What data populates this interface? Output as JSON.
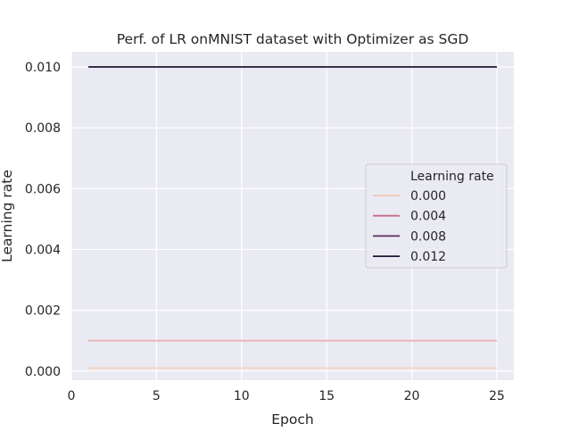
{
  "chart_data": {
    "type": "line",
    "title": "Perf. of LR onMNIST dataset with Optimizer as SGD",
    "xlabel": "Epoch",
    "ylabel": "Learning rate",
    "xlim": [
      0,
      26
    ],
    "ylim": [
      -0.0003,
      0.0105
    ],
    "xticks": [
      0,
      5,
      10,
      15,
      20,
      25
    ],
    "yticks": [
      0.0,
      0.002,
      0.004,
      0.006,
      0.008,
      0.01
    ],
    "xtick_labels": [
      "0",
      "5",
      "10",
      "15",
      "20",
      "25"
    ],
    "ytick_labels": [
      "0.000",
      "0.002",
      "0.004",
      "0.006",
      "0.008",
      "0.010"
    ],
    "grid": true,
    "legend": {
      "title": "Learning rate",
      "placement": "center-right",
      "entries": [
        {
          "label": "0.000",
          "color": "#f1c6b1"
        },
        {
          "label": "0.004",
          "color": "#c86b85"
        },
        {
          "label": "0.008",
          "color": "#5c2d5d"
        },
        {
          "label": "0.012",
          "color": "#1f1530"
        }
      ]
    },
    "series": [
      {
        "color": "#f6d1bd",
        "x": [
          1,
          25
        ],
        "y": [
          0.0001,
          0.0001
        ]
      },
      {
        "color": "#eab3b4",
        "x": [
          1,
          25
        ],
        "y": [
          0.001,
          0.001
        ]
      },
      {
        "color": "#1f1530",
        "x": [
          1,
          25
        ],
        "y": [
          0.01,
          0.01
        ]
      }
    ]
  }
}
